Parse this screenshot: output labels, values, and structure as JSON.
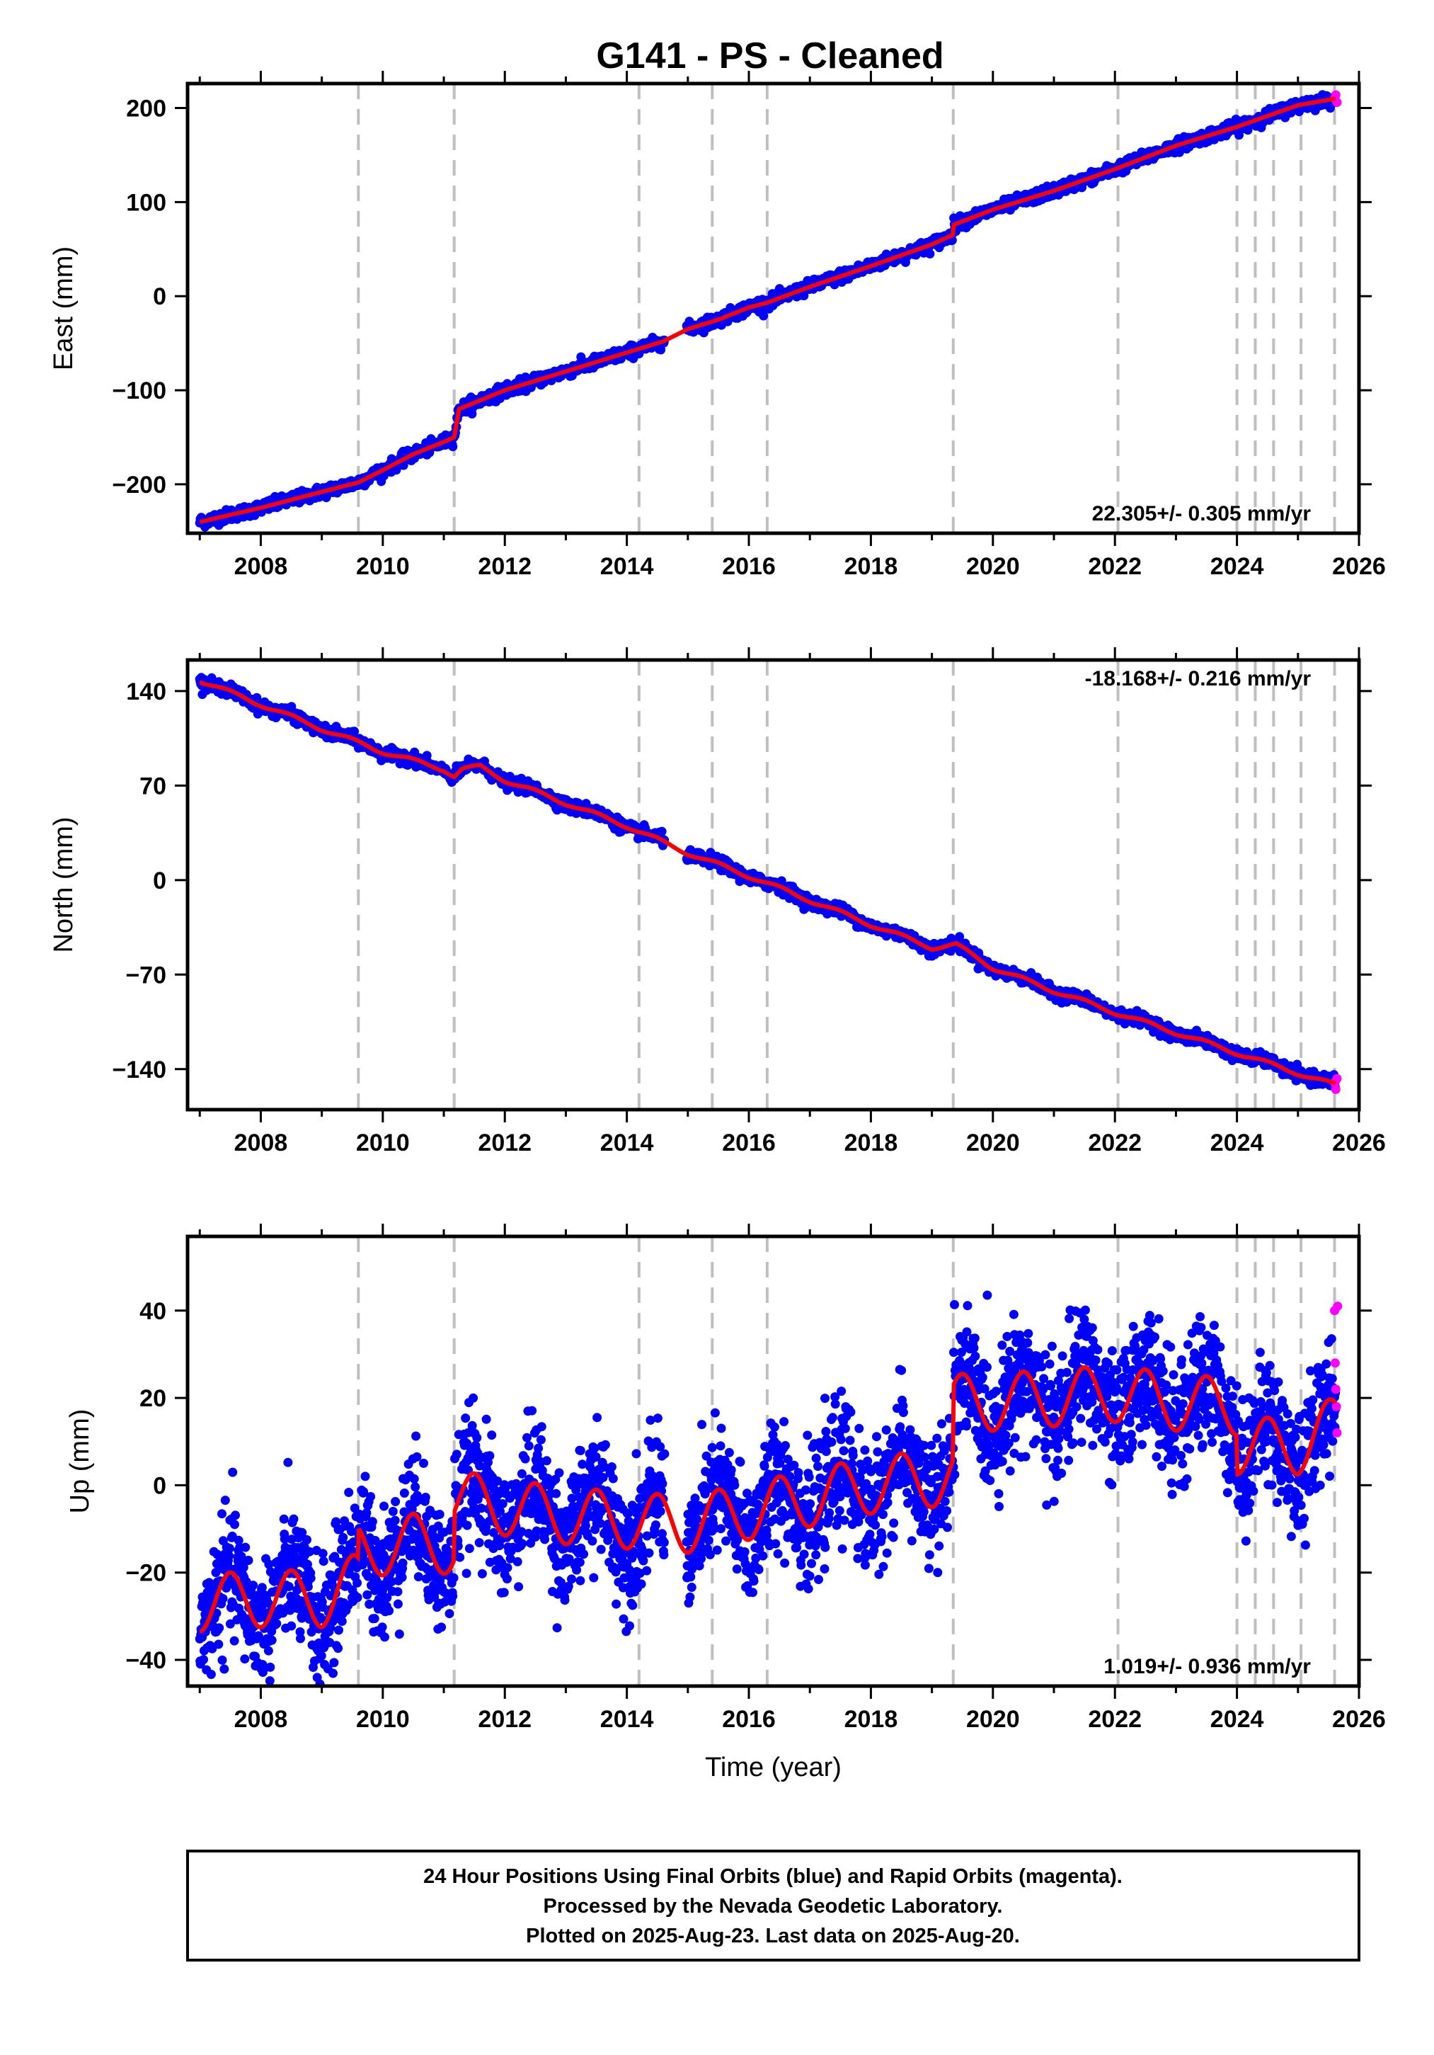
{
  "title": "G141  - PS - Cleaned",
  "footer": {
    "lines": [
      "24 Hour Positions Using Final Orbits (blue) and Rapid Orbits (magenta).",
      "Processed by the Nevada Geodetic Laboratory.",
      "Plotted on 2025-Aug-23. Last data on 2025-Aug-20."
    ]
  },
  "colors": {
    "final_orbits": "#0000ff",
    "rapid_orbits": "#ff00ff",
    "model_fit": "#ff0000",
    "event_lines": "#bfbfbf"
  },
  "chart_data": [
    {
      "type": "scatter",
      "component": "east",
      "ylabel": "East (mm)",
      "xlabel": "",
      "xlim": [
        2006.8,
        2026.0
      ],
      "ylim": [
        -252,
        226
      ],
      "xticks": [
        2008,
        2010,
        2012,
        2014,
        2016,
        2018,
        2020,
        2022,
        2024,
        2026
      ],
      "xtick_labels": [
        "2008",
        "2010",
        "2012",
        "2014",
        "2016",
        "2018",
        "2020",
        "2022",
        "2024",
        "2026"
      ],
      "yticks": [
        -200,
        -100,
        0,
        100,
        200
      ],
      "ytick_labels": [
        "−200",
        "−100",
        "0",
        "100",
        "200"
      ],
      "rate_label": "22.305+/- 0.305 mm/yr",
      "rate_label_position": "bottom-right",
      "event_lines": [
        2009.6,
        2011.17,
        2014.2,
        2015.4,
        2016.3,
        2019.35,
        2022.05,
        2024.0,
        2024.3,
        2024.6,
        2025.05,
        2025.6
      ],
      "trend_knots": {
        "x": [
          2007.0,
          2008.0,
          2009.0,
          2009.6,
          2010.0,
          2010.5,
          2011.0,
          2011.17,
          2011.25,
          2012.0,
          2013.0,
          2014.0,
          2014.6,
          2015.0,
          2015.5,
          2016.0,
          2016.3,
          2017.0,
          2018.0,
          2019.0,
          2019.34,
          2019.36,
          2020.0,
          2021.0,
          2022.0,
          2023.0,
          2024.0,
          2025.0,
          2025.62
        ],
        "y": [
          -240,
          -225,
          -208,
          -198,
          -185,
          -168,
          -155,
          -150,
          -120,
          -100,
          -80,
          -60,
          -48,
          -35,
          -25,
          -12,
          -7,
          10,
          32,
          55,
          65,
          76,
          92,
          112,
          135,
          160,
          180,
          203,
          210
        ]
      },
      "noise_mm": 3.2,
      "annual_amplitude_mm": 0.0,
      "rapid_orbit_points": {
        "x": [
          2025.6,
          2025.62,
          2025.64
        ],
        "y": [
          210,
          214,
          206
        ]
      }
    },
    {
      "type": "scatter",
      "component": "north",
      "ylabel": "North (mm)",
      "xlabel": "",
      "xlim": [
        2006.8,
        2026.0
      ],
      "ylim": [
        -170,
        163
      ],
      "xticks": [
        2008,
        2010,
        2012,
        2014,
        2016,
        2018,
        2020,
        2022,
        2024,
        2026
      ],
      "xtick_labels": [
        "2008",
        "2010",
        "2012",
        "2014",
        "2016",
        "2018",
        "2020",
        "2022",
        "2024",
        "2026"
      ],
      "yticks": [
        -140,
        -70,
        0,
        70,
        140
      ],
      "ytick_labels": [
        "−140",
        "−70",
        "0",
        "70",
        "140"
      ],
      "rate_label": "-18.168+/- 0.216 mm/yr",
      "rate_label_position": "top-right",
      "event_lines": [
        2009.6,
        2011.17,
        2014.2,
        2015.4,
        2016.3,
        2019.35,
        2022.05,
        2024.0,
        2024.3,
        2024.6,
        2025.05,
        2025.6
      ],
      "trend_knots": {
        "x": [
          2007.0,
          2008.0,
          2009.0,
          2010.0,
          2011.0,
          2011.17,
          2011.3,
          2011.6,
          2012.0,
          2013.0,
          2014.0,
          2015.0,
          2016.0,
          2017.0,
          2018.0,
          2019.0,
          2019.4,
          2020.0,
          2021.0,
          2022.0,
          2023.0,
          2024.0,
          2025.0,
          2025.62
        ],
        "y": [
          148,
          130,
          112,
          95,
          82,
          77,
          82,
          84,
          74,
          57,
          40,
          20,
          3,
          -15,
          -33,
          -50,
          -48,
          -65,
          -82,
          -98,
          -113,
          -128,
          -143,
          -152
        ]
      },
      "noise_mm": 2.2,
      "annual_amplitude_mm": 1.5,
      "rapid_orbit_points": {
        "x": [
          2025.6,
          2025.62,
          2025.64
        ],
        "y": [
          -150,
          -155,
          -147
        ]
      }
    },
    {
      "type": "scatter",
      "component": "up",
      "ylabel": "Up (mm)",
      "xlabel": "Time (year)",
      "xlim": [
        2006.8,
        2026.0
      ],
      "ylim": [
        -46,
        57
      ],
      "xticks": [
        2008,
        2010,
        2012,
        2014,
        2016,
        2018,
        2020,
        2022,
        2024,
        2026
      ],
      "xtick_labels": [
        "2008",
        "2010",
        "2012",
        "2014",
        "2016",
        "2018",
        "2020",
        "2022",
        "2024",
        "2026"
      ],
      "yticks": [
        -40,
        -20,
        0,
        20,
        40
      ],
      "ytick_labels": [
        "−40",
        "−20",
        "0",
        "20",
        "40"
      ],
      "rate_label": "1.019+/- 0.936 mm/yr",
      "rate_label_position": "bottom-right",
      "event_lines": [
        2009.6,
        2011.17,
        2014.2,
        2015.4,
        2016.3,
        2019.35,
        2022.05,
        2024.0,
        2024.3,
        2024.6,
        2025.05,
        2025.6
      ],
      "trend_knots": {
        "x": [
          2007.0,
          2008.0,
          2009.0,
          2009.59,
          2009.61,
          2010.5,
          2011.16,
          2011.18,
          2012.0,
          2013.0,
          2014.0,
          2015.0,
          2016.0,
          2017.0,
          2018.0,
          2019.34,
          2019.36,
          2020.0,
          2021.0,
          2022.0,
          2023.0,
          2023.99,
          2024.01,
          2025.0,
          2025.62
        ],
        "y": [
          -27,
          -26,
          -26,
          -22,
          -15,
          -13,
          -14,
          -3,
          -5,
          -7,
          -8,
          -9,
          -6,
          -3,
          0,
          2,
          19,
          19,
          20,
          21,
          19,
          18,
          9,
          9,
          14
        ]
      },
      "noise_mm": 7.0,
      "annual_amplitude_mm": 6.5,
      "rapid_orbit_points": {
        "x": [
          2025.6,
          2025.61,
          2025.62,
          2025.63,
          2025.64,
          2025.65
        ],
        "y": [
          40,
          28,
          22,
          18,
          12,
          41
        ]
      }
    }
  ]
}
